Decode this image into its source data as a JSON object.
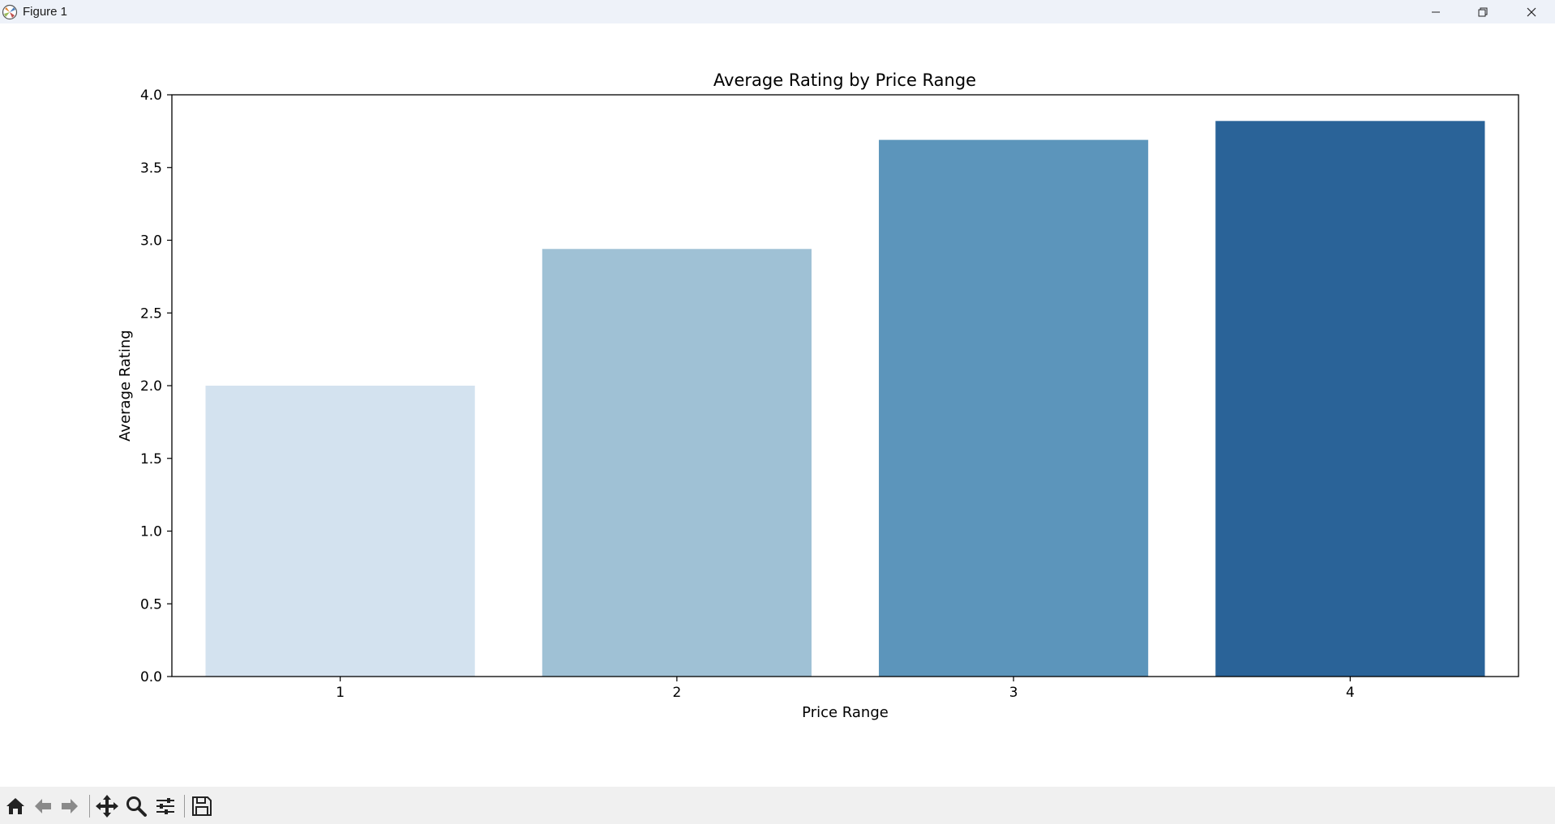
{
  "window": {
    "title": "Figure 1"
  },
  "icons": {
    "app": "matplotlib-icon",
    "minimize": "minimize-icon",
    "maximize": "restore-icon",
    "close": "close-icon",
    "home": "home-icon",
    "back": "arrow-left-icon",
    "forward": "arrow-right-icon",
    "pan": "move-icon",
    "zoom": "magnifier-icon",
    "configure": "sliders-icon",
    "save": "floppy-disk-icon"
  },
  "chart_data": {
    "type": "bar",
    "title": "Average Rating by Price Range",
    "xlabel": "Price Range",
    "ylabel": "Average Rating",
    "categories": [
      "1",
      "2",
      "3",
      "4"
    ],
    "values": [
      2.0,
      2.94,
      3.69,
      3.82
    ],
    "colors": [
      "#d3e2ef",
      "#9fc1d5",
      "#5c95bb",
      "#2a6398"
    ],
    "ylim": [
      0,
      4.0
    ],
    "yticks": [
      "0.0",
      "0.5",
      "1.0",
      "1.5",
      "2.0",
      "2.5",
      "3.0",
      "3.5",
      "4.0"
    ],
    "grid": false,
    "legend": "none"
  }
}
